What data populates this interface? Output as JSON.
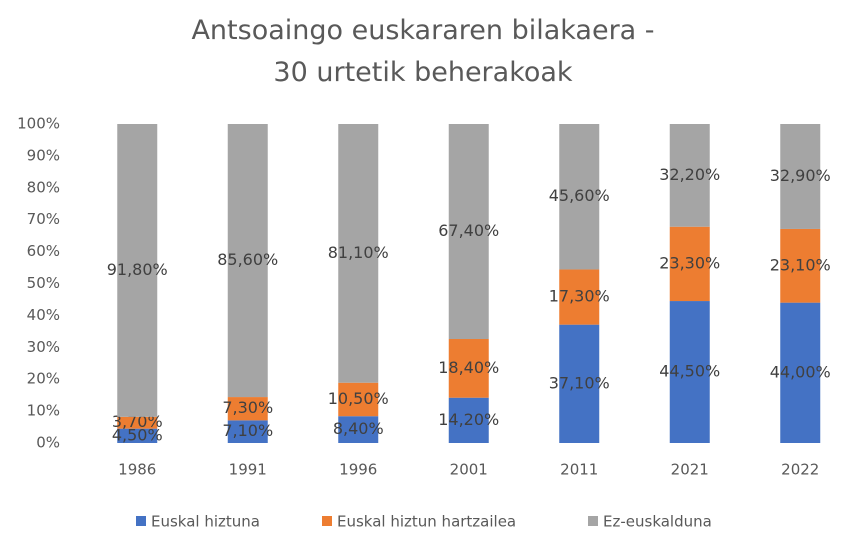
{
  "chart_data": {
    "type": "stacked_bar",
    "title": "Antsoaingo euskararen bilakaera - 30 urtetik beherakoak",
    "categories": [
      "1986",
      "1991",
      "1996",
      "2001",
      "2011",
      "2021",
      "2022"
    ],
    "series": [
      {
        "name": "Euskal hiztuna",
        "color": "#4472c4",
        "values": [
          4.5,
          7.1,
          8.4,
          14.2,
          37.1,
          44.5,
          44.0
        ],
        "value_labels": [
          "4,50%",
          "7,10%",
          "8,40%",
          "14,20%",
          "37,10%",
          "44,50%",
          "44,00%"
        ]
      },
      {
        "name": "Euskal hiztun hartzailea",
        "color": "#ed7d31",
        "values": [
          3.7,
          7.3,
          10.5,
          18.4,
          17.3,
          23.3,
          23.1
        ],
        "value_labels": [
          "3,70%",
          "7,30%",
          "10,50%",
          "18,40%",
          "17,30%",
          "23,30%",
          "23,10%"
        ]
      },
      {
        "name": "Ez-euskalduna",
        "color": "#a5a5a5",
        "values": [
          91.8,
          85.6,
          81.1,
          67.4,
          45.6,
          32.2,
          32.9
        ],
        "value_labels": [
          "91,80%",
          "85,60%",
          "81,10%",
          "67,40%",
          "45,60%",
          "32,20%",
          "32,90%"
        ]
      }
    ],
    "ylim": [
      0,
      100
    ],
    "yticks": [
      {
        "value": 0,
        "label": "0%"
      },
      {
        "value": 10,
        "label": "10%"
      },
      {
        "value": 20,
        "label": "20%"
      },
      {
        "value": 30,
        "label": "30%"
      },
      {
        "value": 40,
        "label": "40%"
      },
      {
        "value": 50,
        "label": "50%"
      },
      {
        "value": 60,
        "label": "60%"
      },
      {
        "value": 70,
        "label": "70%"
      },
      {
        "value": 80,
        "label": "80%"
      },
      {
        "value": 90,
        "label": "90%"
      },
      {
        "value": 100,
        "label": "100%"
      }
    ],
    "legend": "bottom",
    "grid": false
  }
}
